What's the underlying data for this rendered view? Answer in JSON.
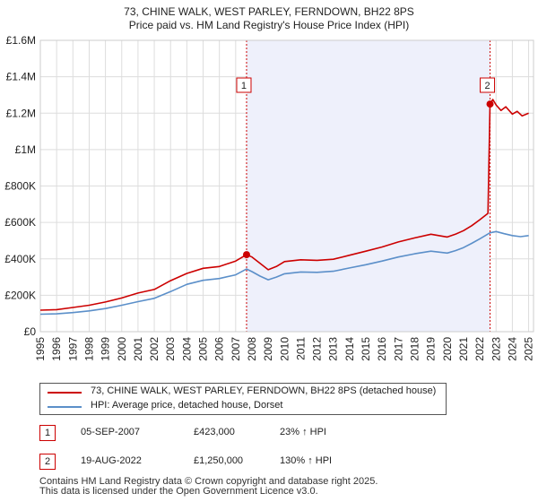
{
  "chart_data": {
    "type": "line",
    "title": "73, CHINE WALK, WEST PARLEY, FERNDOWN, BH22 8PS",
    "subtitle": "Price paid vs. HM Land Registry's House Price Index (HPI)",
    "xlim": [
      1995,
      2025.3
    ],
    "ylim": [
      0,
      1600000
    ],
    "x_ticks": [
      1995,
      1996,
      1997,
      1998,
      1999,
      2000,
      2001,
      2002,
      2003,
      2004,
      2005,
      2006,
      2007,
      2008,
      2009,
      2010,
      2011,
      2012,
      2013,
      2014,
      2015,
      2016,
      2017,
      2018,
      2019,
      2020,
      2021,
      2022,
      2023,
      2024,
      2025
    ],
    "y_ticks": [
      {
        "value": 0,
        "label": "£0"
      },
      {
        "value": 200000,
        "label": "£200K"
      },
      {
        "value": 400000,
        "label": "£400K"
      },
      {
        "value": 600000,
        "label": "£600K"
      },
      {
        "value": 800000,
        "label": "£800K"
      },
      {
        "value": 1000000,
        "label": "£1M"
      },
      {
        "value": 1200000,
        "label": "£1.2M"
      },
      {
        "value": 1400000,
        "label": "£1.4M"
      },
      {
        "value": 1600000,
        "label": "£1.6M"
      }
    ],
    "shaded_period": [
      2007.67,
      2022.63
    ],
    "series": [
      {
        "name": "73, CHINE WALK, WEST PARLEY, FERNDOWN, BH22 8PS (detached house)",
        "color": "#cc0000",
        "x": [
          1995,
          1996,
          1997,
          1998,
          1999,
          2000,
          2001,
          2002,
          2003,
          2004,
          2005,
          2006,
          2007,
          2007.67,
          2008,
          2008.5,
          2009,
          2009.5,
          2010,
          2011,
          2012,
          2013,
          2014,
          2015,
          2016,
          2017,
          2018,
          2019,
          2020,
          2020.5,
          2021,
          2021.5,
          2022,
          2022.5,
          2022.63,
          2022.8,
          2023,
          2023.3,
          2023.6,
          2024,
          2024.3,
          2024.6,
          2025
        ],
        "values": [
          118000,
          121000,
          133000,
          145000,
          163000,
          185000,
          212000,
          232000,
          280000,
          320000,
          348000,
          358000,
          388000,
          423000,
          410000,
          375000,
          340000,
          358000,
          385000,
          395000,
          392000,
          398000,
          420000,
          442000,
          465000,
          493000,
          515000,
          535000,
          520000,
          535000,
          555000,
          582000,
          615000,
          650000,
          1250000,
          1275000,
          1245000,
          1215000,
          1235000,
          1195000,
          1210000,
          1185000,
          1200000
        ]
      },
      {
        "name": "HPI: Average price, detached house, Dorset",
        "color": "#5b8fc9",
        "x": [
          1995,
          1996,
          1997,
          1998,
          1999,
          2000,
          2001,
          2002,
          2003,
          2004,
          2005,
          2006,
          2007,
          2007.67,
          2008,
          2008.5,
          2009,
          2009.5,
          2010,
          2011,
          2012,
          2013,
          2014,
          2015,
          2016,
          2017,
          2018,
          2019,
          2020,
          2020.5,
          2021,
          2021.5,
          2022,
          2022.63,
          2023,
          2023.5,
          2024,
          2024.5,
          2025
        ],
        "values": [
          96000,
          98000,
          105000,
          114000,
          127000,
          145000,
          165000,
          183000,
          220000,
          260000,
          282000,
          292000,
          312000,
          344000,
          330000,
          305000,
          285000,
          300000,
          318000,
          328000,
          326000,
          332000,
          350000,
          368000,
          388000,
          410000,
          428000,
          442000,
          432000,
          445000,
          462000,
          485000,
          510000,
          543000,
          550000,
          538000,
          528000,
          522000,
          528000
        ]
      }
    ],
    "markers": [
      {
        "label": "1",
        "x": 2007.67,
        "value": 423000
      },
      {
        "label": "2",
        "x": 2022.63,
        "value": 1250000
      }
    ],
    "legend_position": "bottom"
  },
  "legend": {
    "property_label": "73, CHINE WALK, WEST PARLEY, FERNDOWN, BH22 8PS (detached house)",
    "hpi_label": "HPI: Average price, detached house, Dorset"
  },
  "sales": [
    {
      "num": "1",
      "date": "05-SEP-2007",
      "price": "£423,000",
      "hpi": "23% ↑ HPI"
    },
    {
      "num": "2",
      "date": "19-AUG-2022",
      "price": "£1,250,000",
      "hpi": "130% ↑ HPI"
    }
  ],
  "footer": {
    "line1": "Contains HM Land Registry data © Crown copyright and database right 2025.",
    "line2": "This data is licensed under the Open Government Licence v3.0."
  }
}
